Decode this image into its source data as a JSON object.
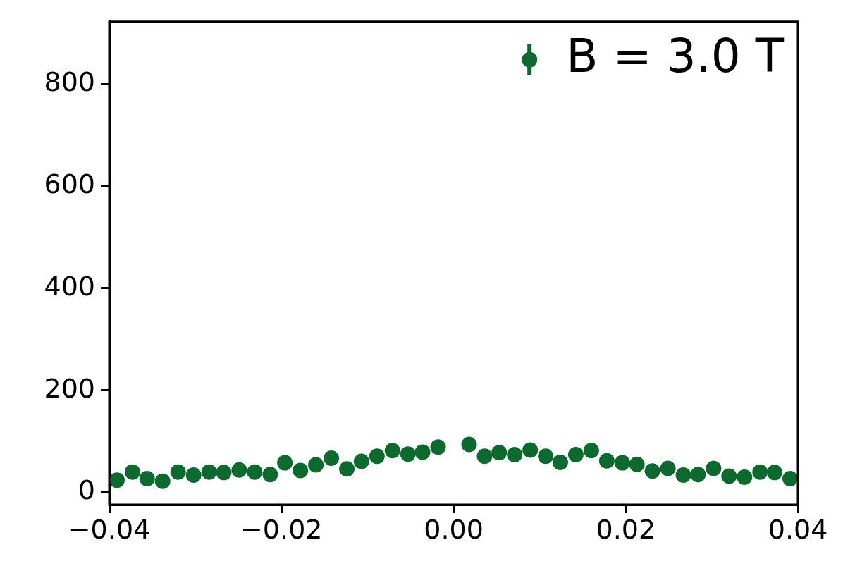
{
  "chart_data": {
    "type": "scatter",
    "xlim": [
      -0.04,
      0.04
    ],
    "ylim": [
      -24,
      922
    ],
    "xticks": [
      {
        "value": -0.04,
        "label": "−0.04"
      },
      {
        "value": -0.02,
        "label": "−0.02"
      },
      {
        "value": 0,
        "label": "0.00"
      },
      {
        "value": 0.02,
        "label": "0.02"
      },
      {
        "value": 0.04,
        "label": "0.04"
      }
    ],
    "yticks": [
      0,
      200,
      400,
      600,
      800
    ],
    "grid": false,
    "legend": "top right",
    "marker": "circle",
    "series": [
      {
        "name": "B = 3.0 T",
        "color": "#0c6a2e",
        "x": [
          -0.0391,
          -0.0373,
          -0.0356,
          -0.0338,
          -0.032,
          -0.0302,
          -0.0284,
          -0.0267,
          -0.0249,
          -0.0231,
          -0.0213,
          -0.0196,
          -0.0178,
          -0.016,
          -0.0142,
          -0.0124,
          -0.0107,
          -0.0089,
          -0.0071,
          -0.0053,
          -0.0036,
          -0.0018,
          0.0018,
          0.0036,
          0.0053,
          0.0071,
          0.0089,
          0.0107,
          0.0124,
          0.0142,
          0.016,
          0.0178,
          0.0196,
          0.0213,
          0.0231,
          0.0249,
          0.0267,
          0.0284,
          0.0302,
          0.032,
          0.0338,
          0.0356,
          0.0373,
          0.0391
        ],
        "values": [
          24,
          40,
          27,
          22,
          40,
          34,
          40,
          39,
          44,
          40,
          35,
          58,
          43,
          54,
          67,
          46,
          61,
          71,
          82,
          75,
          79,
          89,
          94,
          71,
          78,
          74,
          83,
          71,
          59,
          74,
          82,
          62,
          58,
          55,
          42,
          47,
          34,
          35,
          47,
          32,
          30,
          40,
          39,
          27
        ]
      }
    ]
  }
}
